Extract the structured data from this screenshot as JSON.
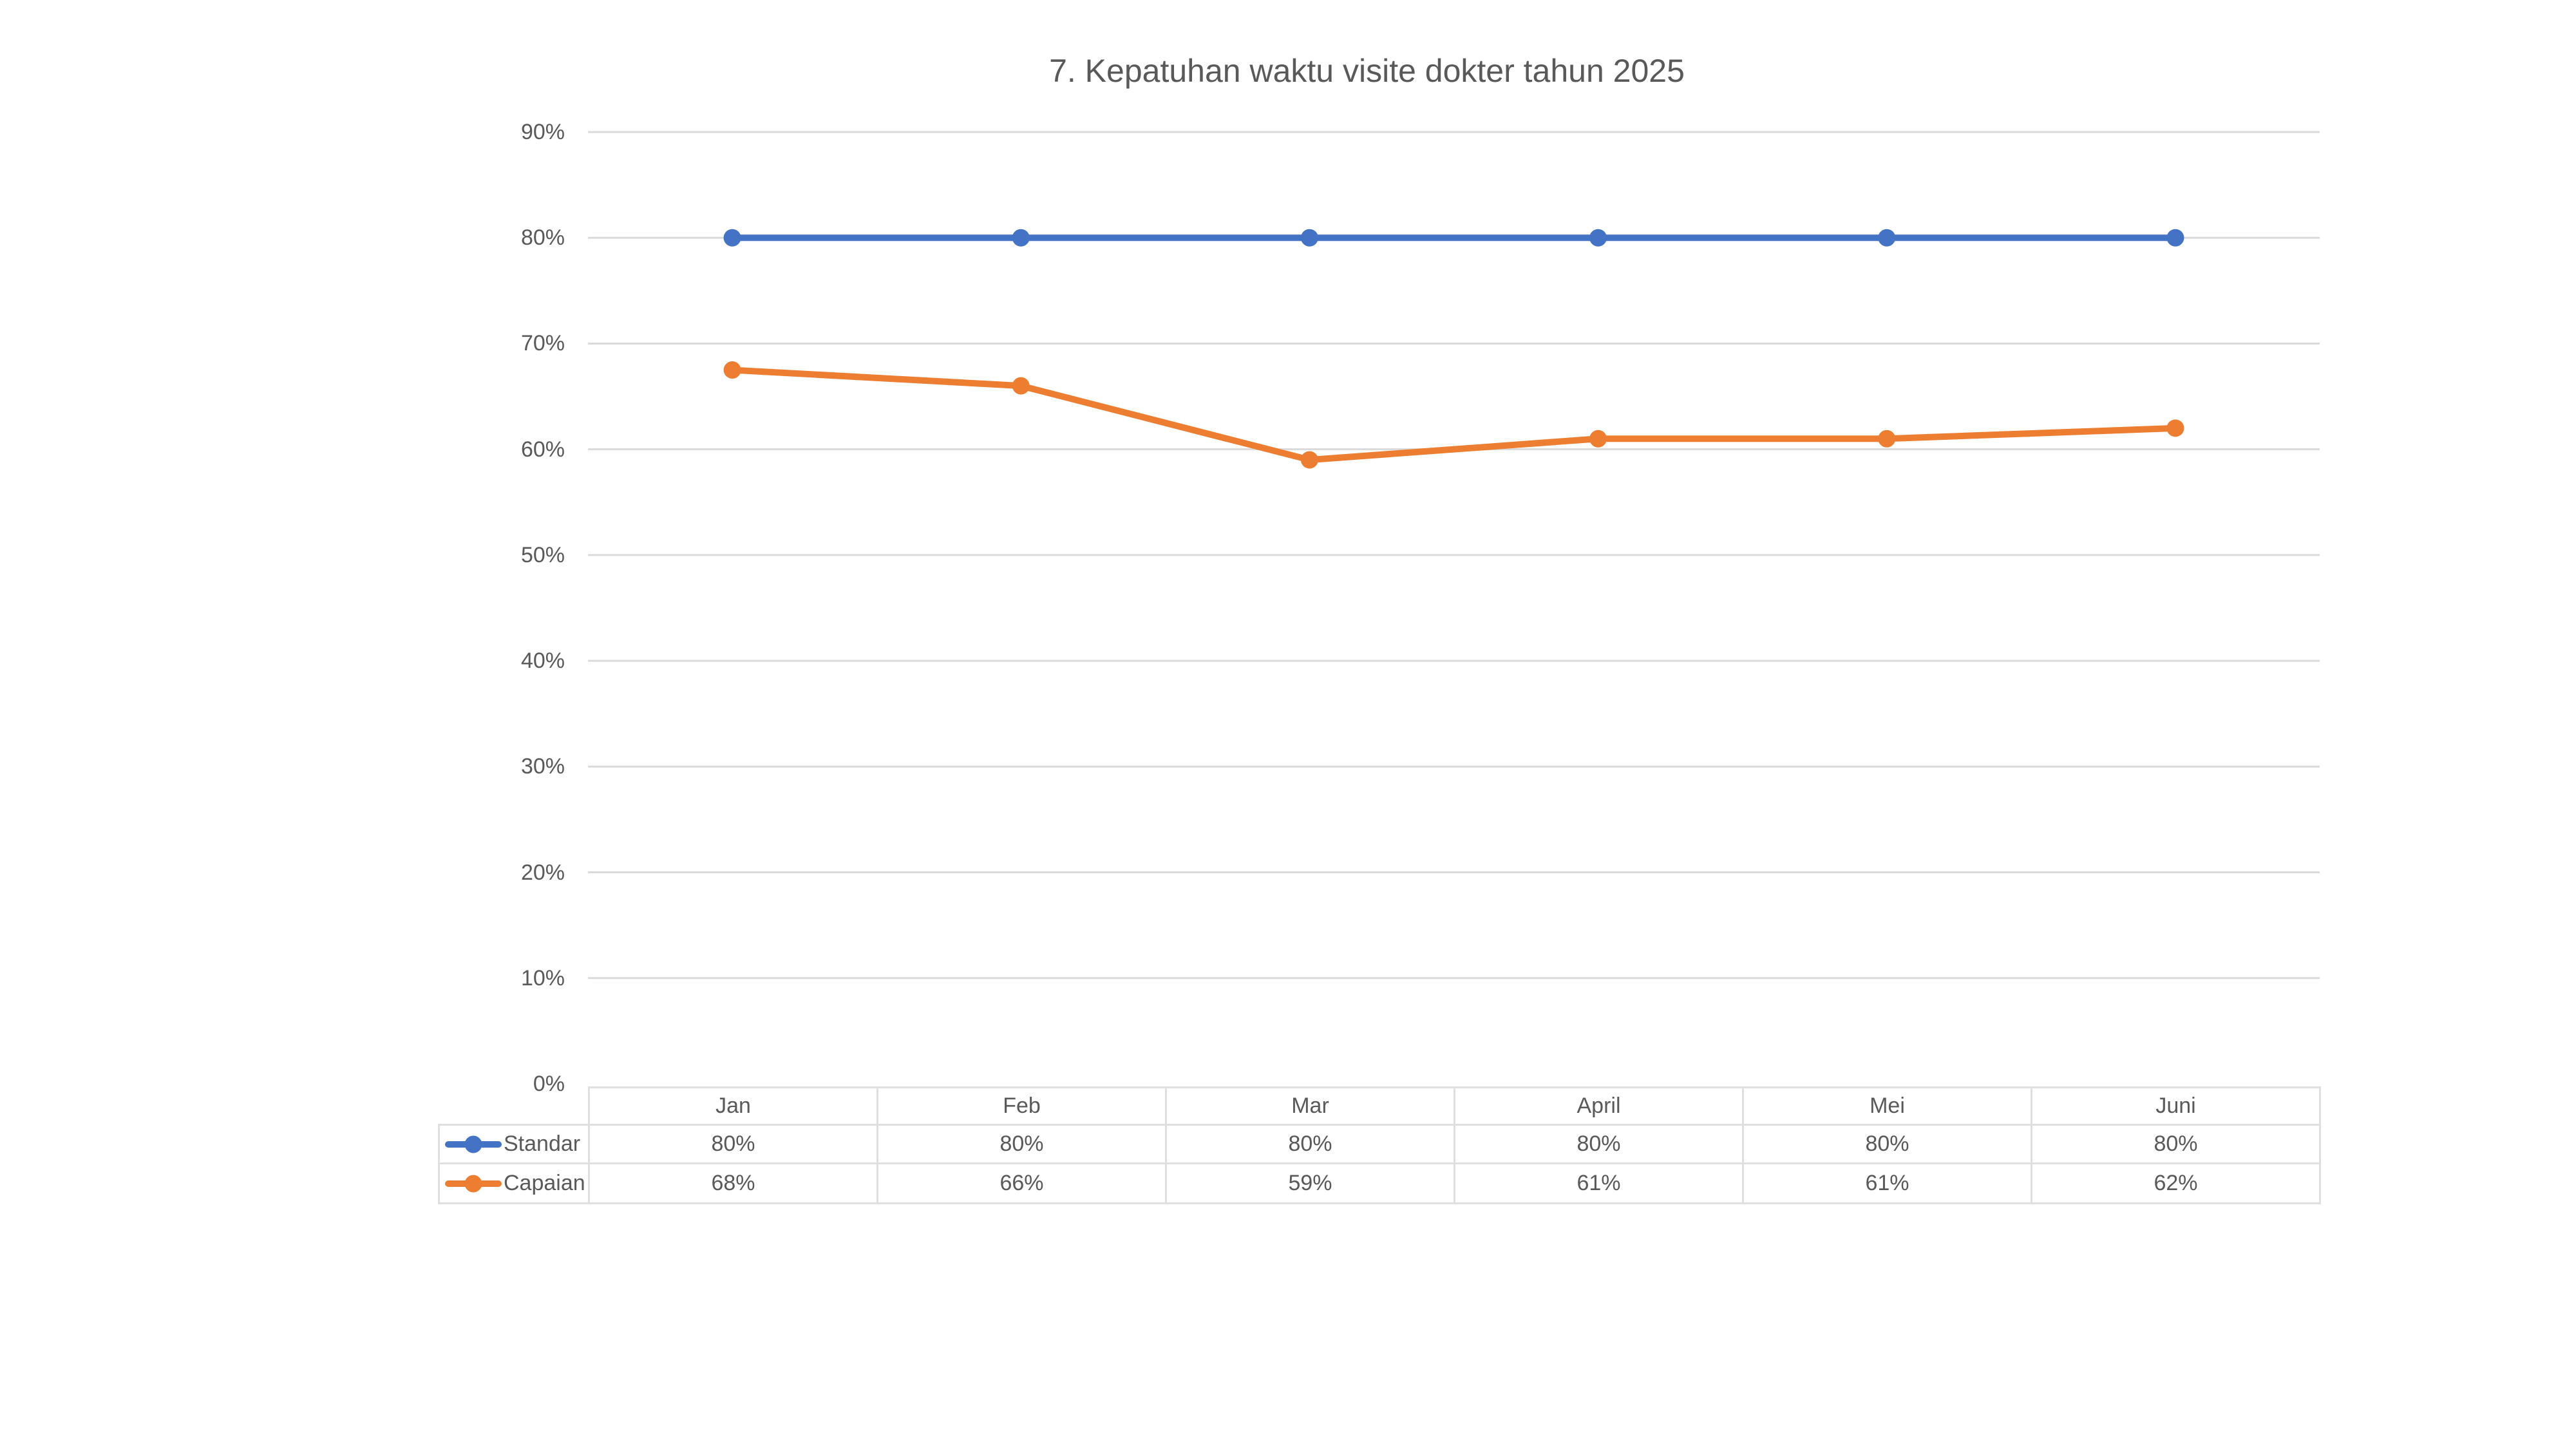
{
  "page": {
    "background": "#FFFFFF",
    "text_color": "#595959"
  },
  "chart_data": {
    "type": "line",
    "title": "7. Kepatuhan waktu visite dokter tahun 2025",
    "categories": [
      "Jan",
      "Feb",
      "Mar",
      "April",
      "Mei",
      "Juni"
    ],
    "series": [
      {
        "name": "Standar",
        "color": "#4472C4",
        "marker": "circle",
        "values": [
          80,
          80,
          80,
          80,
          80,
          80
        ],
        "table_labels": [
          "80%",
          "80%",
          "80%",
          "80%",
          "80%",
          "80%"
        ]
      },
      {
        "name": "Capaian",
        "color": "#ED7D31",
        "marker": "circle",
        "values": [
          67.5,
          66,
          59,
          61,
          61,
          62
        ],
        "table_labels": [
          "68%",
          "66%",
          "59%",
          "61%",
          "61%",
          "62%"
        ]
      }
    ],
    "xlabel": "",
    "ylabel": "",
    "ylim": [
      0,
      90
    ],
    "yticks": [
      0,
      10,
      20,
      30,
      40,
      50,
      60,
      70,
      80,
      90
    ],
    "ytick_labels": [
      "0%",
      "10%",
      "20%",
      "30%",
      "40%",
      "50%",
      "60%",
      "70%",
      "80%",
      "90%"
    ],
    "grid": true,
    "gridline_color": "#DADADA",
    "table_border_color": "#E0E0E0",
    "legend_position": "left-of-data-table",
    "data_table_shown": true
  }
}
